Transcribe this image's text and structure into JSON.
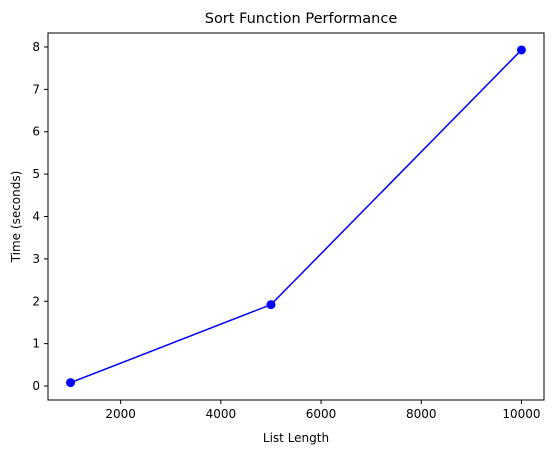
{
  "chart_data": {
    "type": "line",
    "title": "Sort Function Performance",
    "xlabel": "List Length",
    "ylabel": "Time (seconds)",
    "xlim": [
      550,
      10450
    ],
    "ylim": [
      -0.33,
      8.33
    ],
    "xticks": [
      2000,
      4000,
      6000,
      8000,
      10000
    ],
    "yticks": [
      0,
      1,
      2,
      3,
      4,
      5,
      6,
      7,
      8
    ],
    "grid": false,
    "series": [
      {
        "color": "#0000ff",
        "marker": "circle",
        "points": [
          {
            "x": 1000,
            "y": 0.08
          },
          {
            "x": 5000,
            "y": 1.92
          },
          {
            "x": 10000,
            "y": 7.93
          }
        ]
      }
    ]
  }
}
